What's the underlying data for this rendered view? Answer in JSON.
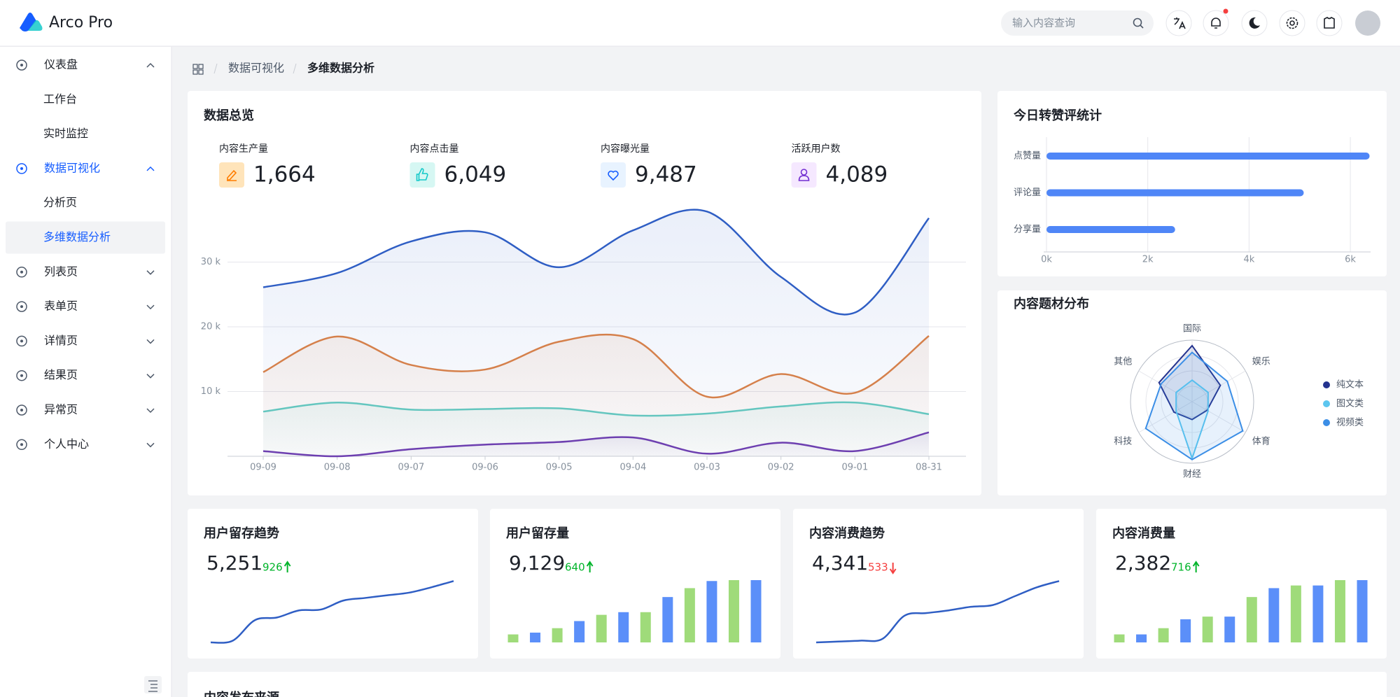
{
  "header": {
    "brand": "Arco Pro",
    "search_placeholder": "输入内容查询"
  },
  "sidebar": {
    "menu": [
      {
        "label": "仪表盘",
        "children": [
          "工作台",
          "实时监控"
        ]
      },
      {
        "label": "数据可视化",
        "children": [
          "分析页",
          "多维数据分析"
        ]
      },
      {
        "label": "列表页"
      },
      {
        "label": "表单页"
      },
      {
        "label": "详情页"
      },
      {
        "label": "结果页"
      },
      {
        "label": "异常页"
      },
      {
        "label": "个人中心"
      }
    ],
    "selected": {
      "menu": 1,
      "child": 1
    }
  },
  "breadcrumb": [
    "数据可视化",
    "多维数据分析"
  ],
  "overview": {
    "title": "数据总览",
    "stats": [
      {
        "label": "内容生产量",
        "value": "1,664"
      },
      {
        "label": "内容点击量",
        "value": "6,049"
      },
      {
        "label": "内容曝光量",
        "value": "9,487"
      },
      {
        "label": "活跃用户数",
        "value": "4,089"
      }
    ],
    "chart_data": {
      "type": "area",
      "categories": [
        "09-09",
        "09-08",
        "09-07",
        "09-06",
        "09-05",
        "09-04",
        "09-03",
        "09-02",
        "09-01",
        "08-31"
      ],
      "series": [
        {
          "color": "#2f5ec4",
          "values": [
            26100,
            28300,
            33200,
            34600,
            29200,
            34900,
            37800,
            27700,
            22200,
            36800
          ]
        },
        {
          "color": "#d5804b",
          "values": [
            13000,
            18500,
            14100,
            13400,
            17700,
            18100,
            9200,
            12700,
            9800,
            18600
          ]
        },
        {
          "color": "#64c6bf",
          "values": [
            6900,
            8300,
            7200,
            7300,
            7400,
            6300,
            6600,
            7700,
            8300,
            6500
          ]
        },
        {
          "color": "#6d3fb0",
          "values": [
            800,
            0,
            1100,
            1800,
            2200,
            2900,
            400,
            2100,
            800,
            3700
          ]
        }
      ],
      "ylim": [
        0,
        40000
      ],
      "yticks": [
        {
          "value": 10000,
          "label": "10 k"
        },
        {
          "value": 20000,
          "label": "20 k"
        },
        {
          "value": 30000,
          "label": "30 k"
        }
      ],
      "grid": true
    }
  },
  "interactions": {
    "title": "今日转赞评统计",
    "chart_data": {
      "type": "hbar",
      "categories": [
        "点赞量",
        "评论量",
        "分享量"
      ],
      "values": [
        6380,
        5080,
        2540
      ],
      "color": "#4f86f7",
      "xlim": [
        0,
        6400
      ],
      "xticks": [
        {
          "value": 0,
          "label": "0k"
        },
        {
          "value": 2000,
          "label": "2k"
        },
        {
          "value": 4000,
          "label": "4k"
        },
        {
          "value": 6000,
          "label": "6k"
        }
      ],
      "grid": true
    }
  },
  "topics": {
    "title": "内容题材分布",
    "chart_data": {
      "type": "radar",
      "axes": [
        "国际",
        "娱乐",
        "体育",
        "财经",
        "科技",
        "其他"
      ],
      "rlim": [
        0,
        100
      ],
      "rticks": [
        25,
        50,
        75,
        100
      ],
      "series": [
        {
          "name": "纯文本",
          "color": "#24338f",
          "values": [
            91,
            53,
            28,
            29,
            34,
            62
          ]
        },
        {
          "name": "图文类",
          "color": "#5cc6ef",
          "values": [
            35,
            30,
            30,
            92,
            30,
            30
          ]
        },
        {
          "name": "视频类",
          "color": "#3b8ee6",
          "values": [
            80,
            66,
            95,
            94,
            87,
            58
          ]
        }
      ],
      "legend": "right"
    }
  },
  "cards": [
    {
      "title": "用户留存趋势",
      "value": "5,251",
      "change": 926,
      "direction": "up",
      "chart_data": {
        "type": "line",
        "values": [
          0,
          2,
          25,
          28,
          36,
          37,
          47,
          50,
          53,
          56,
          62,
          69
        ],
        "color": "#2f5ec4",
        "ylim": [
          0,
          70
        ]
      }
    },
    {
      "title": "用户留存量",
      "value": "9,129",
      "change": 640,
      "direction": "up",
      "chart_data": {
        "type": "bar",
        "values": [
          9,
          11,
          16,
          24,
          31,
          34,
          34,
          51,
          61,
          69,
          70,
          70
        ],
        "colors": [
          "#9fdb7a",
          "#5b8ff9"
        ],
        "ylim": [
          0,
          70
        ]
      }
    },
    {
      "title": "内容消费趋势",
      "value": "4,341",
      "change": 533,
      "direction": "down",
      "chart_data": {
        "type": "line",
        "values": [
          0,
          1,
          2,
          4,
          30,
          33,
          36,
          40,
          42,
          52,
          62,
          69
        ],
        "color": "#2f5ec4",
        "ylim": [
          0,
          70
        ]
      }
    },
    {
      "title": "内容消费量",
      "value": "2,382",
      "change": 716,
      "direction": "up",
      "chart_data": {
        "type": "bar",
        "values": [
          9,
          9,
          16,
          26,
          29,
          29,
          51,
          61,
          64,
          64,
          70,
          70
        ],
        "colors": [
          "#9fdb7a",
          "#5b8ff9"
        ],
        "ylim": [
          0,
          70
        ]
      }
    }
  ],
  "sources": {
    "title": "内容发布来源"
  }
}
